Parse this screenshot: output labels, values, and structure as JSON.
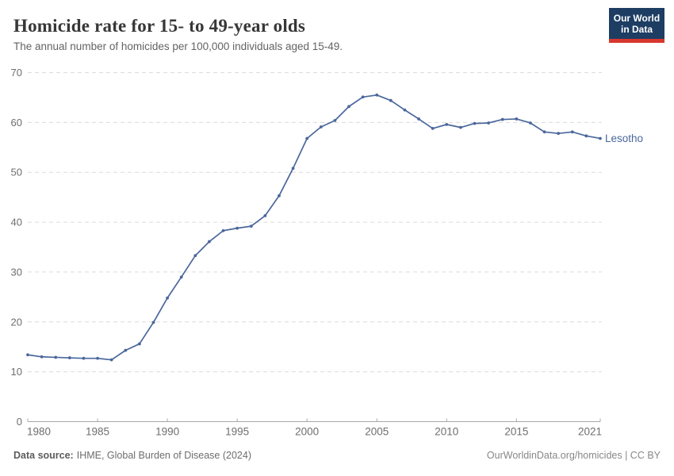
{
  "header": {
    "title": "Homicide rate for 15- to 49-year olds",
    "subtitle": "The annual number of homicides per 100,000 individuals aged 15-49.",
    "logo": {
      "line1": "Our World",
      "line2": "in Data"
    }
  },
  "colors": {
    "series": "#4a679b",
    "logo_bg": "#1d3d63",
    "logo_accent": "#d7382e",
    "grid": "#dcdcdc",
    "axis": "#a8a8a8",
    "tick_label": "#6e6e6e",
    "title": "#373737",
    "subtitle": "#636363",
    "footer": "#6d6d6d"
  },
  "chart_data": {
    "type": "line",
    "title": "Homicide rate for 15- to 49-year olds",
    "subtitle": "The annual number of homicides per 100,000 individuals aged 15-49.",
    "xlabel": "",
    "ylabel": "",
    "xlim": [
      1980,
      2021
    ],
    "ylim": [
      0,
      70
    ],
    "x_ticks": [
      1980,
      1985,
      1990,
      1995,
      2000,
      2005,
      2010,
      2015,
      2021
    ],
    "y_ticks": [
      0,
      10,
      20,
      30,
      40,
      50,
      60,
      70
    ],
    "grid": "horizontal-dashed",
    "legend_position": "end-of-line-label",
    "series": [
      {
        "name": "Lesotho",
        "color": "#4a679b",
        "years": [
          1980,
          1981,
          1982,
          1983,
          1984,
          1985,
          1986,
          1987,
          1988,
          1989,
          1990,
          1991,
          1992,
          1993,
          1994,
          1995,
          1996,
          1997,
          1998,
          1999,
          2000,
          2001,
          2002,
          2003,
          2004,
          2005,
          2006,
          2007,
          2008,
          2009,
          2010,
          2011,
          2012,
          2013,
          2014,
          2015,
          2016,
          2017,
          2018,
          2019,
          2020,
          2021
        ],
        "values": [
          13.4,
          13.0,
          12.9,
          12.8,
          12.7,
          12.7,
          12.4,
          14.3,
          15.6,
          19.9,
          24.8,
          29.0,
          33.3,
          36.1,
          38.3,
          38.8,
          39.2,
          41.3,
          45.3,
          50.8,
          56.8,
          59.1,
          60.4,
          63.2,
          65.1,
          65.5,
          64.4,
          62.5,
          60.7,
          58.8,
          59.6,
          59.0,
          59.8,
          59.9,
          60.6,
          60.7,
          59.9,
          58.1,
          57.8,
          58.1,
          57.3,
          56.8
        ]
      }
    ]
  },
  "footer": {
    "source_label": "Data source:",
    "source_value": "IHME, Global Burden of Disease (2024)",
    "credit": "OurWorldinData.org/homicides | CC BY"
  }
}
